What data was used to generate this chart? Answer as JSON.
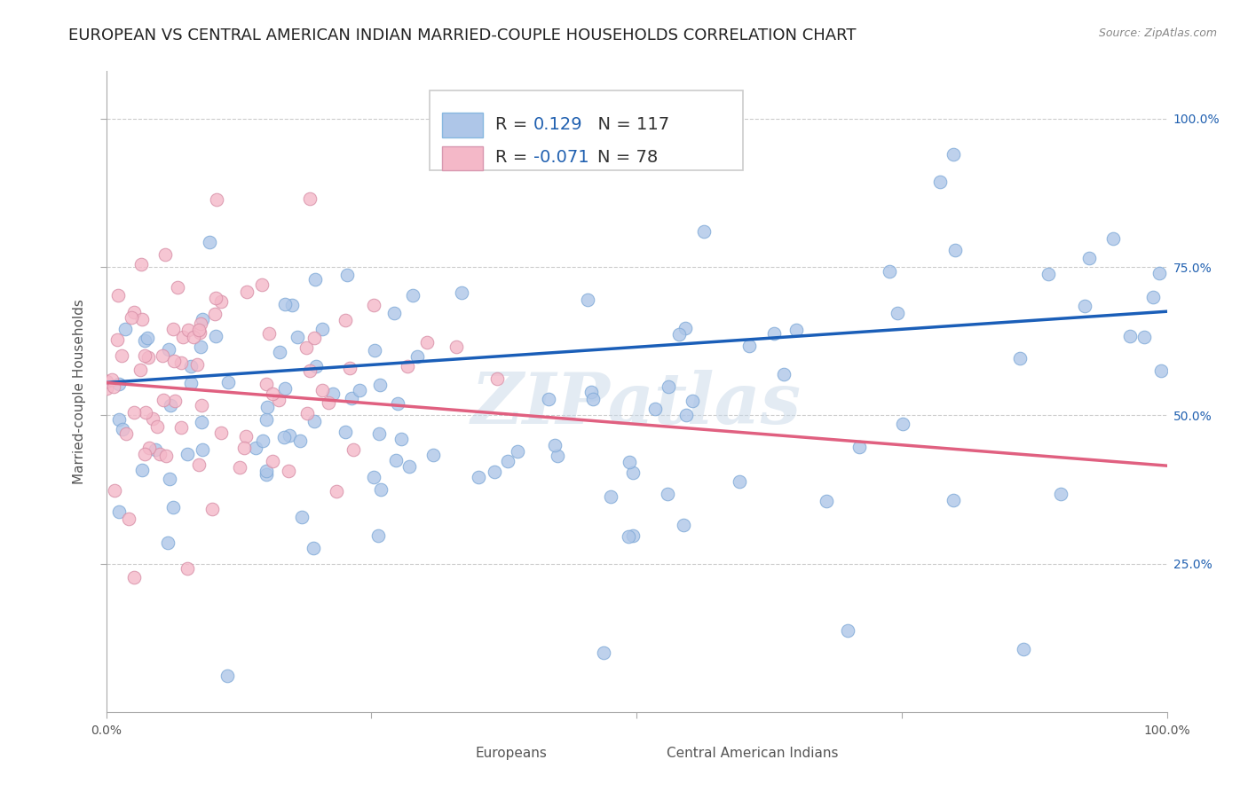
{
  "title": "EUROPEAN VS CENTRAL AMERICAN INDIAN MARRIED-COUPLE HOUSEHOLDS CORRELATION CHART",
  "source": "Source: ZipAtlas.com",
  "ylabel": "Married-couple Households",
  "xlim": [
    0,
    1
  ],
  "ylim": [
    0,
    1.08
  ],
  "xticks": [
    0,
    0.25,
    0.5,
    0.75,
    1.0
  ],
  "xticklabels": [
    "0.0%",
    "",
    "",
    "",
    "100.0%"
  ],
  "ytick_right_labels": [
    "100.0%",
    "75.0%",
    "50.0%",
    "25.0%"
  ],
  "ytick_right_values": [
    1.0,
    0.75,
    0.5,
    0.25
  ],
  "legend_entries": [
    {
      "label": "Europeans",
      "color": "#aec6e8",
      "R": "0.129",
      "N": "117"
    },
    {
      "label": "Central American Indians",
      "color": "#f4b8c8",
      "R": "-0.071",
      "N": "78"
    }
  ],
  "blue_scatter_color": "#aec6e8",
  "pink_scatter_color": "#f4b8c8",
  "blue_line_color": "#1a5eb8",
  "pink_line_color": "#e06080",
  "watermark": "ZIPatlas",
  "title_fontsize": 13,
  "axis_fontsize": 11,
  "tick_fontsize": 10,
  "background_color": "#ffffff",
  "grid_color": "#cccccc",
  "n_blue": 117,
  "n_pink": 78,
  "R_blue": 0.129,
  "R_pink": -0.071,
  "blue_line_x0": 0.0,
  "blue_line_y0": 0.555,
  "blue_line_x1": 1.0,
  "blue_line_y1": 0.675,
  "pink_line_x0": 0.0,
  "pink_line_y0": 0.555,
  "pink_line_x1": 1.0,
  "pink_line_y1": 0.415
}
